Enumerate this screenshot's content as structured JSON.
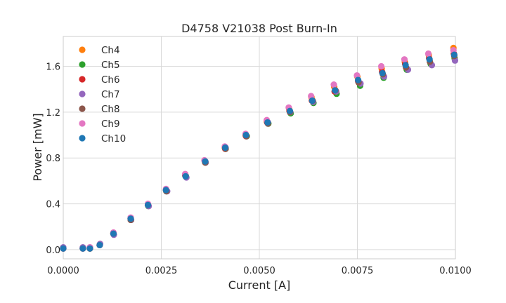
{
  "chart_data": {
    "type": "scatter",
    "title": "D4758 V21038 Post Burn-In",
    "xlabel": "Current [A]",
    "ylabel": "Power [mW]",
    "xlim": [
      0,
      0.01
    ],
    "ylim": [
      -0.08,
      1.86
    ],
    "xticks": [
      "0.0000",
      "0.0025",
      "0.0050",
      "0.0075",
      "0.0100"
    ],
    "xtick_values": [
      0,
      0.0025,
      0.005,
      0.0075,
      0.01
    ],
    "yticks": [
      "0.0",
      "0.4",
      "0.8",
      "1.2",
      "1.6"
    ],
    "ytick_values": [
      0,
      0.4,
      0.8,
      1.2,
      1.6
    ],
    "grid": true,
    "legend_position": "top-left",
    "series": [
      {
        "name": "Ch4",
        "color": "#ff7f0e",
        "points": [
          [
            0,
            0.01
          ],
          [
            0.0005,
            0.01
          ],
          [
            0.00068,
            0.01
          ],
          [
            0.00093,
            0.04
          ],
          [
            0.00128,
            0.14
          ],
          [
            0.00172,
            0.27
          ],
          [
            0.00216,
            0.39
          ],
          [
            0.00262,
            0.52
          ],
          [
            0.00311,
            0.65
          ],
          [
            0.00361,
            0.77
          ],
          [
            0.00412,
            0.89
          ],
          [
            0.00465,
            1.0
          ],
          [
            0.00519,
            1.12
          ],
          [
            0.00576,
            1.23
          ],
          [
            0.00633,
            1.33
          ],
          [
            0.00691,
            1.42
          ],
          [
            0.0075,
            1.51
          ],
          [
            0.00812,
            1.58
          ],
          [
            0.00871,
            1.64
          ],
          [
            0.00932,
            1.7
          ],
          [
            0.00995,
            1.76
          ]
        ]
      },
      {
        "name": "Ch5",
        "color": "#2ca02c",
        "points": [
          [
            0,
            0.01
          ],
          [
            0.0005,
            0.01
          ],
          [
            0.00068,
            0.01
          ],
          [
            0.00093,
            0.04
          ],
          [
            0.00128,
            0.14
          ],
          [
            0.00173,
            0.26
          ],
          [
            0.00217,
            0.38
          ],
          [
            0.00263,
            0.51
          ],
          [
            0.00313,
            0.64
          ],
          [
            0.00363,
            0.76
          ],
          [
            0.00414,
            0.88
          ],
          [
            0.00468,
            0.99
          ],
          [
            0.00523,
            1.1
          ],
          [
            0.0058,
            1.19
          ],
          [
            0.00638,
            1.28
          ],
          [
            0.00697,
            1.36
          ],
          [
            0.00757,
            1.43
          ],
          [
            0.00817,
            1.5
          ],
          [
            0.00876,
            1.57
          ],
          [
            0.00937,
            1.62
          ],
          [
            0.00998,
            1.67
          ]
        ]
      },
      {
        "name": "Ch6",
        "color": "#d62728",
        "points": [
          [
            0,
            0.01
          ],
          [
            0.0005,
            0.01
          ],
          [
            0.00068,
            0.01
          ],
          [
            0.00093,
            0.04
          ],
          [
            0.00128,
            0.14
          ],
          [
            0.00172,
            0.27
          ],
          [
            0.00216,
            0.39
          ],
          [
            0.00262,
            0.52
          ],
          [
            0.00311,
            0.65
          ],
          [
            0.00362,
            0.77
          ],
          [
            0.00413,
            0.88
          ],
          [
            0.00466,
            0.99
          ],
          [
            0.0052,
            1.11
          ],
          [
            0.00577,
            1.21
          ],
          [
            0.00634,
            1.3
          ],
          [
            0.00692,
            1.38
          ],
          [
            0.00752,
            1.47
          ],
          [
            0.00813,
            1.55
          ],
          [
            0.00872,
            1.62
          ],
          [
            0.00933,
            1.67
          ],
          [
            0.00996,
            1.71
          ]
        ]
      },
      {
        "name": "Ch7",
        "color": "#9467bd",
        "points": [
          [
            0,
            0.02
          ],
          [
            0.0005,
            0.02
          ],
          [
            0.00068,
            0.02
          ],
          [
            0.00094,
            0.05
          ],
          [
            0.00129,
            0.13
          ],
          [
            0.00173,
            0.26
          ],
          [
            0.00218,
            0.38
          ],
          [
            0.00265,
            0.51
          ],
          [
            0.00314,
            0.63
          ],
          [
            0.00363,
            0.76
          ],
          [
            0.00414,
            0.89
          ],
          [
            0.00467,
            0.99
          ],
          [
            0.00522,
            1.11
          ],
          [
            0.00579,
            1.2
          ],
          [
            0.00637,
            1.29
          ],
          [
            0.00696,
            1.38
          ],
          [
            0.00758,
            1.45
          ],
          [
            0.00818,
            1.51
          ],
          [
            0.00879,
            1.57
          ],
          [
            0.0094,
            1.61
          ],
          [
            0.00999,
            1.65
          ]
        ]
      },
      {
        "name": "Ch8",
        "color": "#8c564b",
        "points": [
          [
            0,
            0.01
          ],
          [
            0.0005,
            0.01
          ],
          [
            0.00068,
            0.01
          ],
          [
            0.00093,
            0.04
          ],
          [
            0.00128,
            0.14
          ],
          [
            0.00172,
            0.26
          ],
          [
            0.00216,
            0.39
          ],
          [
            0.00263,
            0.51
          ],
          [
            0.00312,
            0.64
          ],
          [
            0.00362,
            0.76
          ],
          [
            0.00414,
            0.88
          ],
          [
            0.00467,
            0.99
          ],
          [
            0.00522,
            1.1
          ],
          [
            0.00578,
            1.2
          ],
          [
            0.00636,
            1.3
          ],
          [
            0.00694,
            1.39
          ],
          [
            0.00753,
            1.46
          ],
          [
            0.00815,
            1.53
          ],
          [
            0.00874,
            1.59
          ],
          [
            0.00935,
            1.64
          ],
          [
            0.00997,
            1.69
          ]
        ]
      },
      {
        "name": "Ch9",
        "color": "#e377c2",
        "points": [
          [
            0,
            0.01
          ],
          [
            0.0005,
            0.01
          ],
          [
            0.00068,
            0.02
          ],
          [
            0.00093,
            0.04
          ],
          [
            0.00128,
            0.15
          ],
          [
            0.00172,
            0.28
          ],
          [
            0.00216,
            0.4
          ],
          [
            0.00262,
            0.53
          ],
          [
            0.00311,
            0.66
          ],
          [
            0.0036,
            0.78
          ],
          [
            0.00412,
            0.9
          ],
          [
            0.00465,
            1.01
          ],
          [
            0.00519,
            1.13
          ],
          [
            0.00575,
            1.24
          ],
          [
            0.00632,
            1.34
          ],
          [
            0.0069,
            1.44
          ],
          [
            0.00749,
            1.52
          ],
          [
            0.00811,
            1.6
          ],
          [
            0.0087,
            1.66
          ],
          [
            0.00931,
            1.71
          ],
          [
            0.00995,
            1.74
          ]
        ]
      },
      {
        "name": "Ch10",
        "color": "#1f77b4",
        "points": [
          [
            0,
            0.01
          ],
          [
            0.0005,
            0.01
          ],
          [
            0.00068,
            0.01
          ],
          [
            0.00093,
            0.04
          ],
          [
            0.00128,
            0.14
          ],
          [
            0.00172,
            0.27
          ],
          [
            0.00216,
            0.39
          ],
          [
            0.00262,
            0.52
          ],
          [
            0.00312,
            0.64
          ],
          [
            0.00362,
            0.77
          ],
          [
            0.00413,
            0.89
          ],
          [
            0.00466,
            1.0
          ],
          [
            0.00521,
            1.11
          ],
          [
            0.00578,
            1.21
          ],
          [
            0.00635,
            1.3
          ],
          [
            0.00693,
            1.39
          ],
          [
            0.00752,
            1.48
          ],
          [
            0.00814,
            1.54
          ],
          [
            0.00873,
            1.61
          ],
          [
            0.00934,
            1.66
          ],
          [
            0.00997,
            1.7
          ]
        ]
      }
    ]
  }
}
